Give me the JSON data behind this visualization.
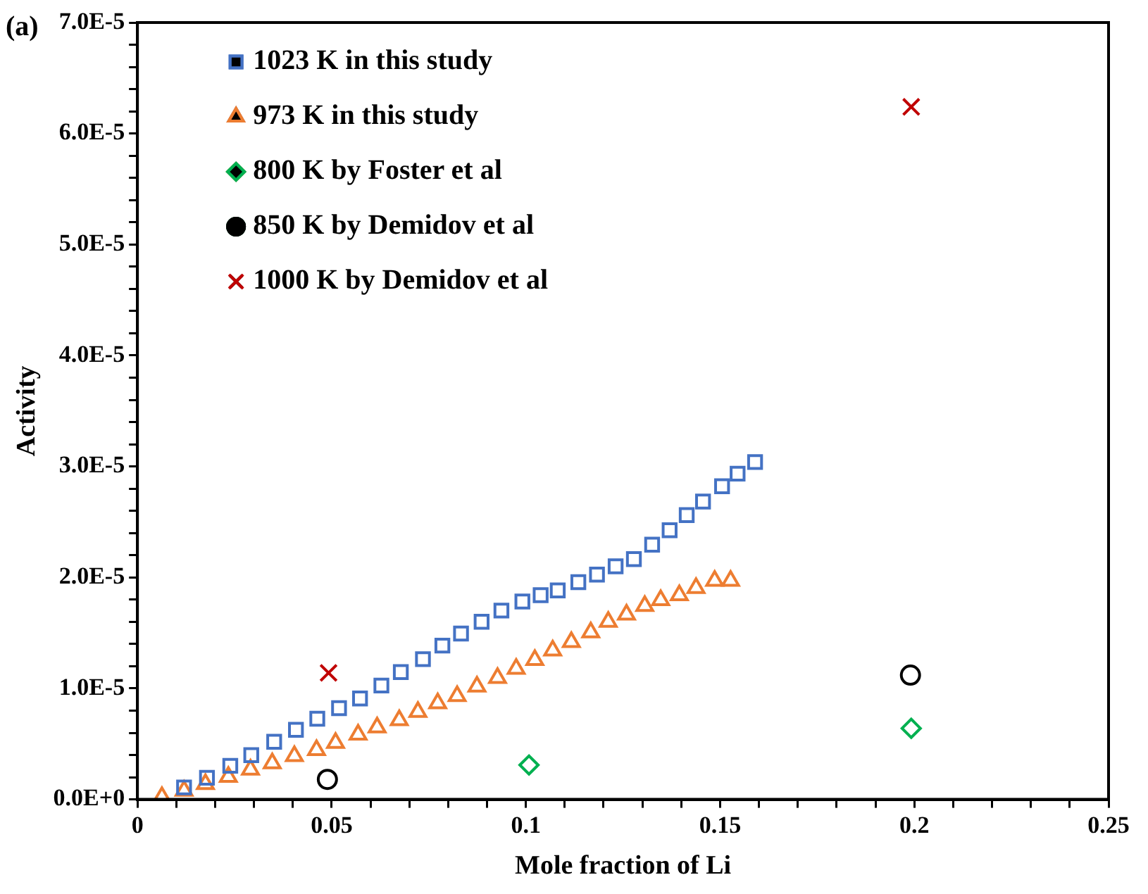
{
  "chart_data": {
    "type": "scatter",
    "xlabel": "Mole fraction of Li",
    "ylabel": "Activity",
    "annotations": [
      "(a)"
    ],
    "legend": "top left",
    "xlim": [
      0,
      0.25
    ],
    "xticks": [
      0,
      {
        "value": 0.01,
        "label": null
      },
      {
        "value": 0.02,
        "label": null
      },
      {
        "value": 0.03,
        "label": null
      },
      {
        "value": 0.04,
        "label": null
      },
      0.05,
      {
        "value": 0.06,
        "label": null
      },
      {
        "value": 0.07,
        "label": null
      },
      {
        "value": 0.08,
        "label": null
      },
      {
        "value": 0.09,
        "label": null
      },
      0.1,
      {
        "value": 0.11,
        "label": null
      },
      {
        "value": 0.12,
        "label": null
      },
      {
        "value": 0.13,
        "label": null
      },
      {
        "value": 0.14,
        "label": null
      },
      0.15,
      {
        "value": 0.16,
        "label": null
      },
      {
        "value": 0.17,
        "label": null
      },
      {
        "value": 0.18,
        "label": null
      },
      {
        "value": 0.19,
        "label": null
      },
      0.2,
      {
        "value": 0.21,
        "label": null
      },
      {
        "value": 0.22,
        "label": null
      },
      {
        "value": 0.23,
        "label": null
      },
      {
        "value": 0.24,
        "label": null
      },
      0.25
    ],
    "ylim": [
      0,
      7e-05
    ],
    "yticks": [
      {
        "value": 0,
        "label": "0.0E+0"
      },
      {
        "value": 2e-06,
        "label": null
      },
      {
        "value": 4e-06,
        "label": null
      },
      {
        "value": 6e-06,
        "label": null
      },
      {
        "value": 8e-06,
        "label": null
      },
      {
        "value": 1e-05,
        "label": "1.0E-5"
      },
      {
        "value": 1.2e-05,
        "label": null
      },
      {
        "value": 1.4e-05,
        "label": null
      },
      {
        "value": 1.6e-05,
        "label": null
      },
      {
        "value": 1.8e-05,
        "label": null
      },
      {
        "value": 2e-05,
        "label": "2.0E-5"
      },
      {
        "value": 2.2e-05,
        "label": null
      },
      {
        "value": 2.4e-05,
        "label": null
      },
      {
        "value": 2.6e-05,
        "label": null
      },
      {
        "value": 2.8e-05,
        "label": null
      },
      {
        "value": 3e-05,
        "label": "3.0E-5"
      },
      {
        "value": 3.2e-05,
        "label": null
      },
      {
        "value": 3.4e-05,
        "label": null
      },
      {
        "value": 3.6e-05,
        "label": null
      },
      {
        "value": 3.8e-05,
        "label": null
      },
      {
        "value": 4e-05,
        "label": "4.0E-5"
      },
      {
        "value": 4.2e-05,
        "label": null
      },
      {
        "value": 4.4e-05,
        "label": null
      },
      {
        "value": 4.6e-05,
        "label": null
      },
      {
        "value": 4.8e-05,
        "label": null
      },
      {
        "value": 5e-05,
        "label": "5.0E-5"
      },
      {
        "value": 5.2e-05,
        "label": null
      },
      {
        "value": 5.4e-05,
        "label": null
      },
      {
        "value": 5.6e-05,
        "label": null
      },
      {
        "value": 5.8e-05,
        "label": null
      },
      {
        "value": 6e-05,
        "label": "6.0E-5"
      },
      {
        "value": 6.2e-05,
        "label": null
      },
      {
        "value": 6.4e-05,
        "label": null
      },
      {
        "value": 6.6e-05,
        "label": null
      },
      {
        "value": 6.8e-05,
        "label": null
      },
      {
        "value": 7e-05,
        "label": "7.0E-5"
      }
    ],
    "series": [
      {
        "name": "1023 K in this study",
        "color": "#4472c4",
        "marker": "square",
        "x": [
          0.012,
          0.0179,
          0.0239,
          0.0293,
          0.0352,
          0.0408,
          0.0463,
          0.0519,
          0.0573,
          0.0628,
          0.0678,
          0.0735,
          0.0785,
          0.0833,
          0.0886,
          0.0937,
          0.0991,
          0.1038,
          0.1082,
          0.1135,
          0.1183,
          0.1231,
          0.1278,
          0.1325,
          0.137,
          0.1414,
          0.1456,
          0.1505,
          0.1545,
          0.159
        ],
        "values": [
          1.08e-06,
          1.95e-06,
          3.03e-06,
          3.99e-06,
          5.19e-06,
          6.27e-06,
          7.27e-06,
          8.22e-06,
          9.09e-06,
          1.026e-05,
          1.147e-05,
          1.264e-05,
          1.386e-05,
          1.494e-05,
          1.601e-05,
          1.701e-05,
          1.783e-05,
          1.84e-05,
          1.883e-05,
          1.957e-05,
          2.026e-05,
          2.1e-05,
          2.165e-05,
          2.295e-05,
          2.425e-05,
          2.562e-05,
          2.684e-05,
          2.822e-05,
          2.935e-05,
          3.04e-05
        ]
      },
      {
        "name": "973 K in this study",
        "color": "#ed7d31",
        "marker": "triangle",
        "x": [
          0.0063,
          0.012,
          0.0175,
          0.0234,
          0.0291,
          0.0347,
          0.0404,
          0.0461,
          0.051,
          0.0568,
          0.0617,
          0.0674,
          0.0722,
          0.0773,
          0.0823,
          0.0874,
          0.0927,
          0.0975,
          0.1023,
          0.1069,
          0.1117,
          0.1167,
          0.1212,
          0.1259,
          0.1306,
          0.1347,
          0.1395,
          0.1438,
          0.1486,
          0.1527
        ],
        "values": [
          2.2e-07,
          7.8e-07,
          1.39e-06,
          2.04e-06,
          2.69e-06,
          3.25e-06,
          3.9e-06,
          4.45e-06,
          5.1e-06,
          5.84e-06,
          6.49e-06,
          7.14e-06,
          7.88e-06,
          8.66e-06,
          9.31e-06,
          1.017e-05,
          1.095e-05,
          1.178e-05,
          1.256e-05,
          1.342e-05,
          1.419e-05,
          1.506e-05,
          1.601e-05,
          1.666e-05,
          1.744e-05,
          1.796e-05,
          1.84e-05,
          1.905e-05,
          1.97e-05,
          1.97e-05
        ]
      },
      {
        "name": "800 K by Foster et al",
        "color": "#00b050",
        "marker": "diamond",
        "x": [
          0.1008,
          0.1992
        ],
        "values": [
          3.1e-06,
          6.4e-06
        ]
      },
      {
        "name": "850 K by Demidov et al",
        "color": "#000000",
        "marker": "circle",
        "x": [
          0.0489,
          0.199
        ],
        "values": [
          1.8e-06,
          1.12e-05
        ]
      },
      {
        "name": "1000 K by Demidov et al",
        "color": "#c00000",
        "marker": "cross",
        "x": [
          0.0492,
          0.1992
        ],
        "values": [
          1.14e-05,
          6.24e-05
        ]
      }
    ]
  }
}
